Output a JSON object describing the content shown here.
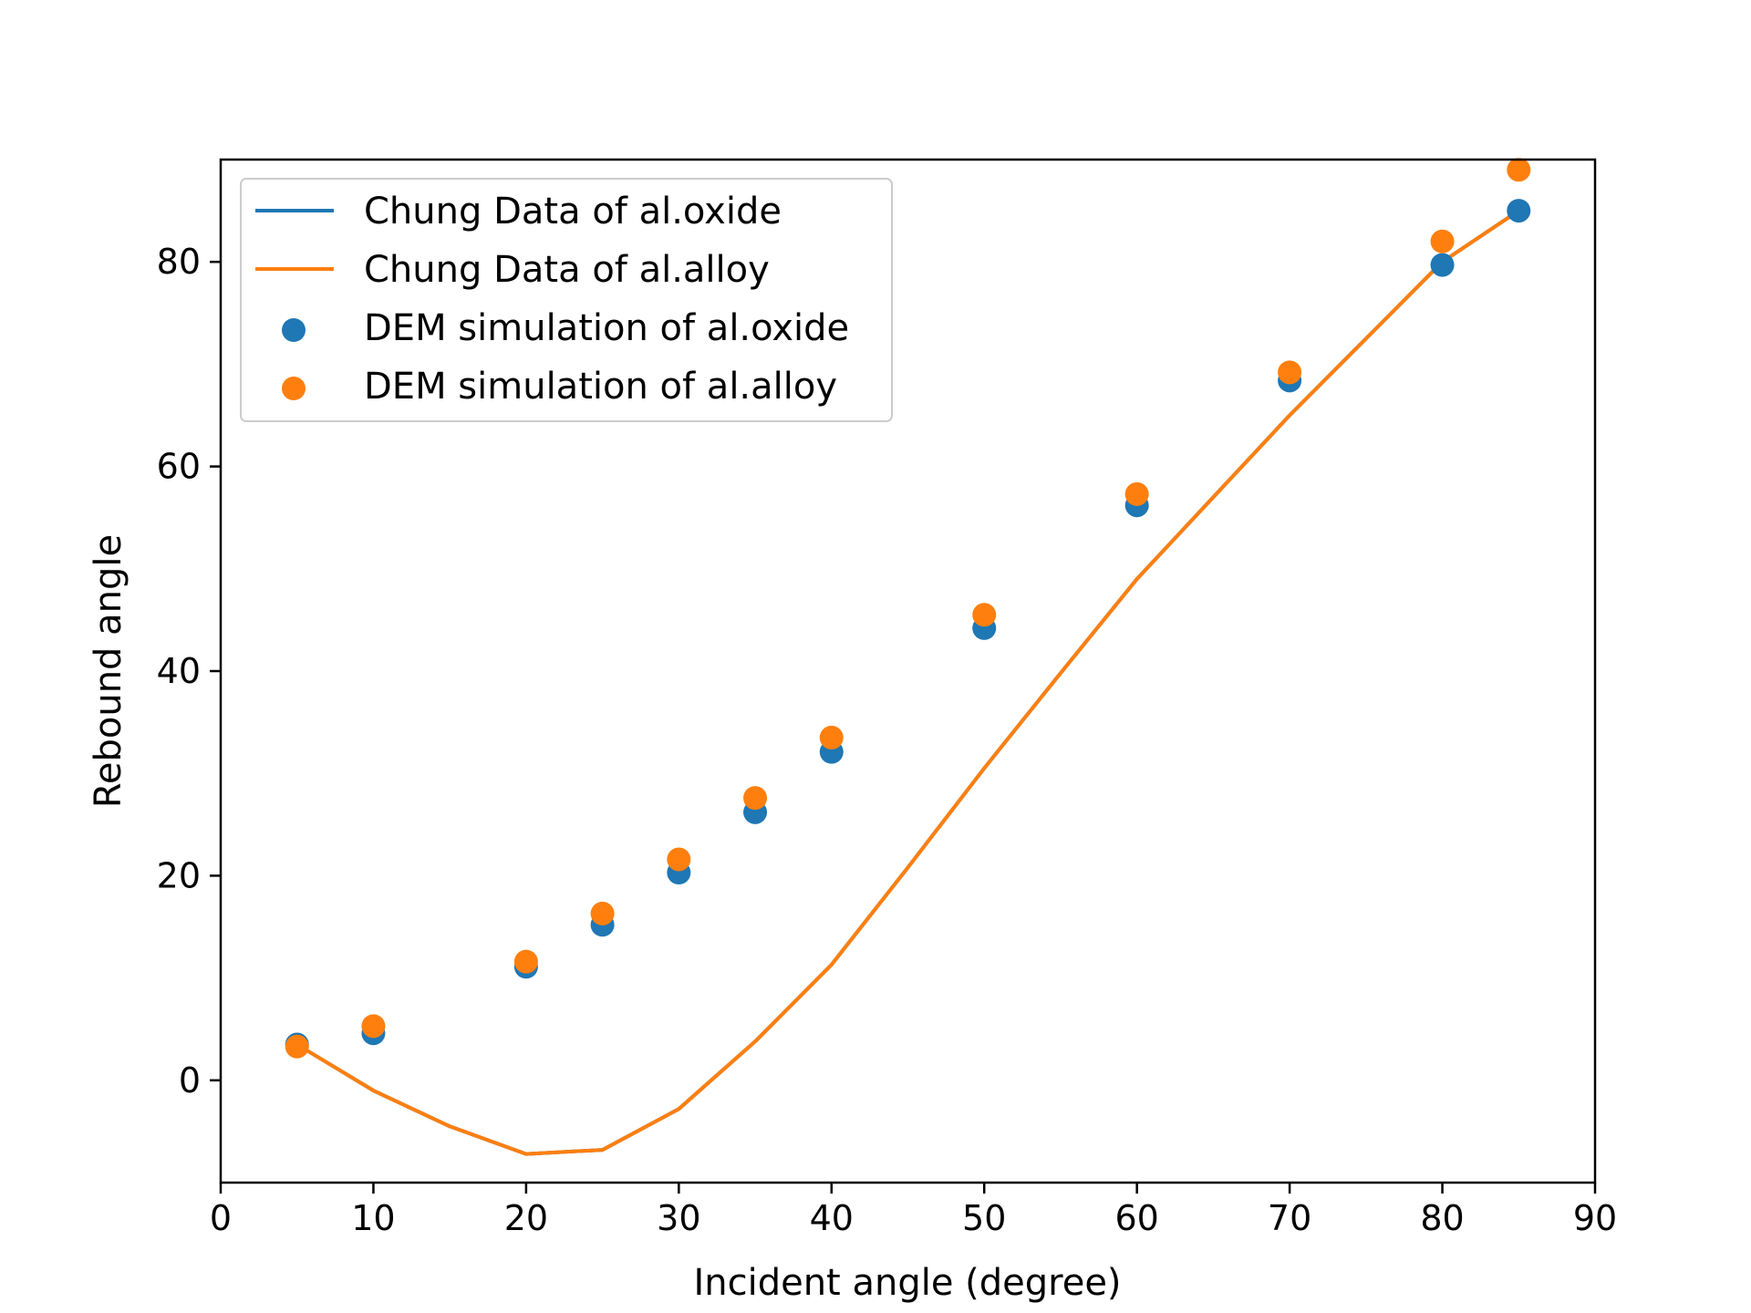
{
  "chart_data": {
    "type": "scatter",
    "title": "",
    "xlabel": "Incident angle (degree)",
    "ylabel": "Rebound angle",
    "xlim": [
      0,
      90
    ],
    "ylim": [
      -10,
      90
    ],
    "x_ticks": [
      0,
      10,
      20,
      30,
      40,
      50,
      60,
      70,
      80,
      90
    ],
    "y_ticks": [
      0,
      20,
      40,
      60,
      80
    ],
    "x_tick_labels": [
      "0",
      "10",
      "20",
      "30",
      "40",
      "50",
      "60",
      "70",
      "80",
      "90"
    ],
    "y_tick_labels": [
      "0",
      "20",
      "40",
      "60",
      "80"
    ],
    "grid": false,
    "legend_position": "top-left",
    "series": [
      {
        "name": "Chung Data of al.oxide",
        "kind": "line",
        "color": "#1f77b4",
        "x": [
          5,
          10,
          15,
          20,
          25,
          30,
          35,
          40,
          45,
          50,
          55,
          60,
          65,
          70,
          75,
          80,
          85
        ],
        "y": [
          3.5,
          -1.0,
          -4.5,
          -7.2,
          -6.8,
          -2.8,
          3.8,
          11.3,
          20.8,
          30.5,
          39.8,
          49.0,
          57.0,
          65.0,
          72.5,
          80.0,
          85.0
        ]
      },
      {
        "name": "Chung Data of al.alloy",
        "kind": "line",
        "color": "#ff7f0e",
        "x": [
          5,
          10,
          15,
          20,
          25,
          30,
          35,
          40,
          45,
          50,
          55,
          60,
          65,
          70,
          75,
          80,
          85
        ],
        "y": [
          3.5,
          -1.0,
          -4.5,
          -7.2,
          -6.8,
          -2.8,
          3.8,
          11.3,
          20.8,
          30.5,
          39.8,
          49.0,
          57.0,
          65.0,
          72.5,
          80.0,
          85.0
        ]
      },
      {
        "name": "DEM simulation of al.oxide",
        "kind": "scatter",
        "color": "#1f77b4",
        "x": [
          5,
          10,
          20,
          25,
          30,
          35,
          40,
          50,
          60,
          70,
          80,
          85
        ],
        "y": [
          3.5,
          4.6,
          11.1,
          15.2,
          20.3,
          26.2,
          32.1,
          44.2,
          56.2,
          68.4,
          79.7,
          85.0
        ]
      },
      {
        "name": "DEM simulation of al.alloy",
        "kind": "scatter",
        "color": "#ff7f0e",
        "x": [
          5,
          10,
          20,
          25,
          30,
          35,
          40,
          50,
          60,
          70,
          80,
          85
        ],
        "y": [
          3.3,
          5.3,
          11.6,
          16.3,
          21.6,
          27.6,
          33.5,
          45.5,
          57.3,
          69.2,
          82.0,
          89.0
        ]
      }
    ]
  }
}
